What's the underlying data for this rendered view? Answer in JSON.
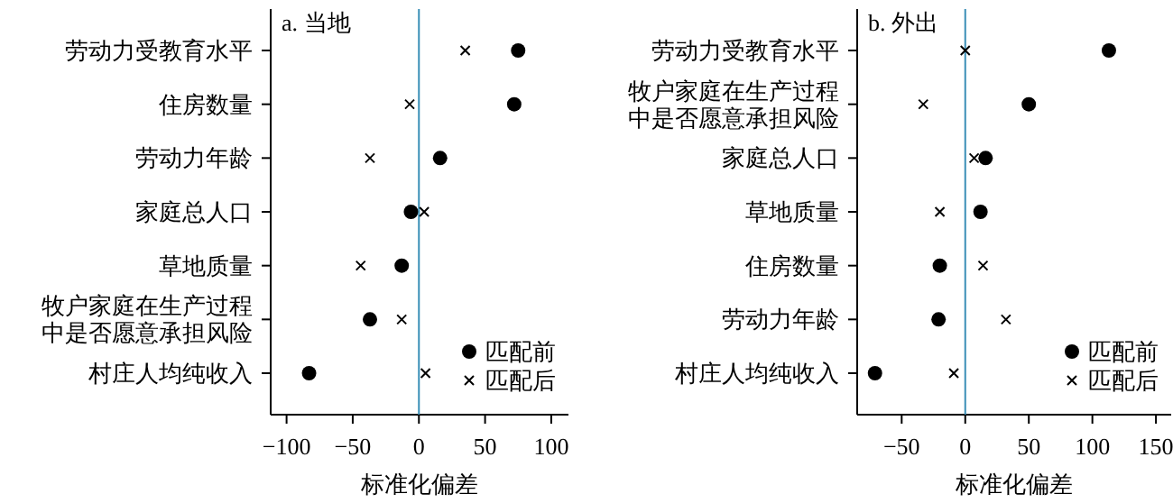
{
  "chart_data": [
    {
      "type": "scatter",
      "orientation": "horizontal",
      "title": "a. 当地",
      "xlabel": "标准化偏差",
      "categories": [
        "劳动力受教育水平",
        "住房数量",
        "劳动力年龄",
        "家庭总人口",
        "草地质量",
        "牧户家庭在生产过程中是否愿意承担风险",
        "村庄人均纯收入"
      ],
      "series": [
        {
          "name": "匹配前",
          "color": "#000000",
          "marker": "circle",
          "values": [
            75,
            72,
            16,
            -6,
            -13,
            -37,
            -83
          ]
        },
        {
          "name": "匹配后",
          "color": "#000000",
          "marker": "cross",
          "values": [
            35,
            -7,
            -37,
            4,
            -44,
            -13,
            5
          ]
        }
      ],
      "xlim": [
        -112,
        113
      ],
      "xticks": [
        -100,
        -50,
        0,
        50,
        100
      ],
      "ref_lines": [
        {
          "axis": "x",
          "value": 0,
          "color": "#3a8fb7"
        }
      ],
      "legend": "bottom right"
    },
    {
      "type": "scatter",
      "orientation": "horizontal",
      "title": "b. 外出",
      "xlabel": "标准化偏差",
      "categories": [
        "劳动力受教育水平",
        "牧户家庭在生产过程中是否愿意承担风险",
        "家庭总人口",
        "草地质量",
        "住房数量",
        "劳动力年龄",
        "村庄人均纯收入"
      ],
      "series": [
        {
          "name": "匹配前",
          "color": "#000000",
          "marker": "circle",
          "values": [
            113,
            50,
            16,
            12,
            -20,
            -21,
            -71
          ]
        },
        {
          "name": "匹配后",
          "color": "#000000",
          "marker": "cross",
          "values": [
            0,
            -33,
            7,
            -20,
            14,
            32,
            -9
          ]
        }
      ],
      "xlim": [
        -85,
        162
      ],
      "xticks": [
        -50,
        0,
        50,
        100,
        150
      ],
      "ref_lines": [
        {
          "axis": "x",
          "value": 0,
          "color": "#3a8fb7"
        }
      ],
      "legend": "bottom right"
    }
  ]
}
